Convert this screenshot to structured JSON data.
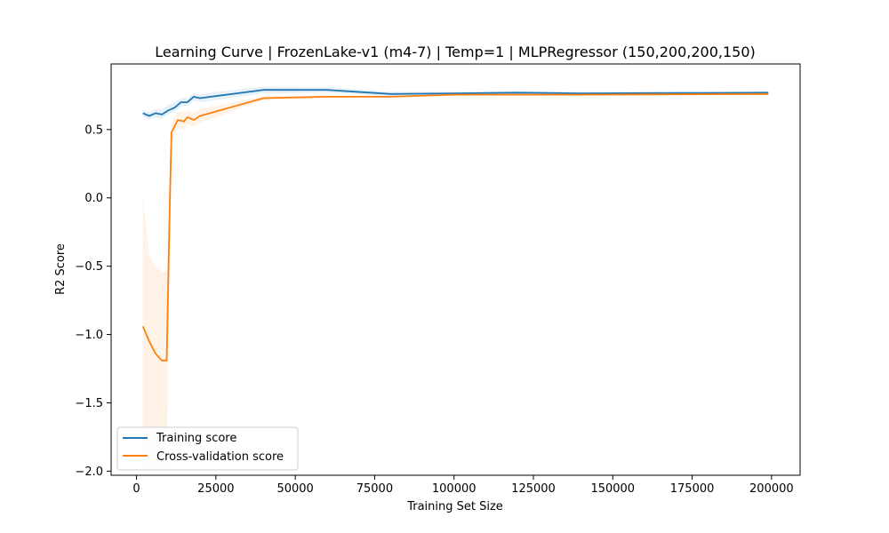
{
  "chart_data": {
    "type": "line",
    "title": "Learning Curve | FrozenLake-v1 (m4-7) | Temp=1 | MLPRegressor (150,200,200,150)",
    "xlabel": "Training Set Size",
    "ylabel": "R2 Score",
    "xlim": [
      -8000,
      209000
    ],
    "ylim": [
      -2.03,
      0.98
    ],
    "xticks": [
      0,
      25000,
      50000,
      75000,
      100000,
      125000,
      150000,
      175000,
      200000
    ],
    "xtick_labels": [
      "0",
      "25000",
      "50000",
      "75000",
      "100000",
      "125000",
      "150000",
      "175000",
      "200000"
    ],
    "yticks": [
      -2.0,
      -1.5,
      -1.0,
      -0.5,
      0.0,
      0.5
    ],
    "ytick_labels": [
      "−2.0",
      "−1.5",
      "−1.0",
      "−0.5",
      "0.0",
      "0.5"
    ],
    "grid": false,
    "legend": "lower-left",
    "series": [
      {
        "name": "Training score",
        "color": "#1f77b4",
        "band_color": "#1f77b4",
        "x": [
          2000,
          4000,
          6000,
          8000,
          10000,
          12000,
          14000,
          16000,
          18000,
          20000,
          40000,
          60000,
          80000,
          100000,
          120000,
          140000,
          160000,
          180000,
          199000
        ],
        "y": [
          0.62,
          0.6,
          0.62,
          0.61,
          0.64,
          0.66,
          0.7,
          0.7,
          0.74,
          0.73,
          0.79,
          0.79,
          0.76,
          0.765,
          0.77,
          0.765,
          0.767,
          0.768,
          0.77
        ],
        "upper": [
          0.64,
          0.63,
          0.65,
          0.65,
          0.68,
          0.7,
          0.73,
          0.73,
          0.77,
          0.76,
          0.815,
          0.81,
          0.775,
          0.775,
          0.78,
          0.775,
          0.775,
          0.777,
          0.778
        ],
        "lower": [
          0.6,
          0.57,
          0.59,
          0.58,
          0.61,
          0.63,
          0.67,
          0.67,
          0.71,
          0.7,
          0.765,
          0.77,
          0.745,
          0.755,
          0.76,
          0.755,
          0.759,
          0.76,
          0.762
        ]
      },
      {
        "name": "Cross-validation score",
        "color": "#ff7f0e",
        "band_color": "#ff7f0e",
        "x": [
          2000,
          4000,
          6000,
          8000,
          9500,
          10500,
          11000,
          13000,
          15000,
          16000,
          18000,
          20000,
          40000,
          60000,
          80000,
          100000,
          120000,
          140000,
          160000,
          180000,
          199000
        ],
        "y": [
          -0.94,
          -1.05,
          -1.14,
          -1.19,
          -1.19,
          -0.02,
          0.48,
          0.57,
          0.56,
          0.59,
          0.57,
          0.6,
          0.73,
          0.74,
          0.74,
          0.755,
          0.755,
          0.755,
          0.757,
          0.758,
          0.76
        ],
        "upper": [
          0.0,
          -0.42,
          -0.5,
          -0.54,
          -0.54,
          0.25,
          0.55,
          0.63,
          0.62,
          0.64,
          0.62,
          0.65,
          0.745,
          0.75,
          0.745,
          0.76,
          0.76,
          0.76,
          0.762,
          0.763,
          0.765
        ],
        "lower": [
          -1.97,
          -1.97,
          -1.97,
          -1.97,
          -1.97,
          -0.3,
          0.41,
          0.51,
          0.5,
          0.54,
          0.52,
          0.55,
          0.715,
          0.73,
          0.735,
          0.75,
          0.75,
          0.75,
          0.752,
          0.753,
          0.755
        ]
      }
    ]
  }
}
